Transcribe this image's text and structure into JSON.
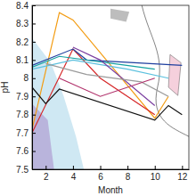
{
  "chart_data": {
    "type": "line",
    "x_label": "Month",
    "y_label": "pH",
    "xlim": [
      1,
      12.5
    ],
    "xticks": [
      2,
      4,
      6,
      8,
      10,
      12
    ],
    "ylim": [
      7.5,
      8.4
    ],
    "yticks": [
      7.5,
      7.6,
      7.7,
      7.8,
      7.9,
      8.0,
      8.1,
      8.2,
      8.3,
      8.4
    ],
    "tick_labels": true,
    "series": [
      {
        "color": "#f39c12",
        "x": [
          1,
          3,
          4,
          10,
          11
        ],
        "values": [
          7.72,
          8.36,
          8.32,
          7.78,
          7.9
        ]
      },
      {
        "color": "#d62728",
        "x": [
          1,
          4,
          6,
          10
        ],
        "values": [
          7.7,
          8.16,
          8.0,
          7.8
        ]
      },
      {
        "color": "#111111",
        "x": [
          1,
          2,
          3,
          10,
          11,
          12
        ],
        "values": [
          7.95,
          7.86,
          7.94,
          7.77,
          7.85,
          7.8
        ]
      },
      {
        "color": "#1f3f9f",
        "x": [
          1,
          4,
          5,
          12
        ],
        "values": [
          8.07,
          8.16,
          8.1,
          8.07
        ]
      },
      {
        "color": "#5bc0de",
        "x": [
          1,
          4,
          8,
          11
        ],
        "values": [
          8.05,
          8.1,
          8.05,
          8.0
        ]
      },
      {
        "color": "#17a2a2",
        "x": [
          1,
          3,
          6,
          10
        ],
        "values": [
          8.06,
          8.12,
          8.09,
          8.05
        ]
      },
      {
        "color": "#7b3fa0",
        "x": [
          4,
          6,
          10
        ],
        "values": [
          8.17,
          8.1,
          7.85
        ]
      },
      {
        "color": "#9a9a9a",
        "x": [
          2,
          5,
          9,
          11
        ],
        "values": [
          8.08,
          8.02,
          7.98,
          7.9
        ]
      },
      {
        "color": "#b0306a",
        "x": [
          3,
          6,
          10
        ],
        "values": [
          8.0,
          7.9,
          8.0
        ]
      }
    ]
  }
}
